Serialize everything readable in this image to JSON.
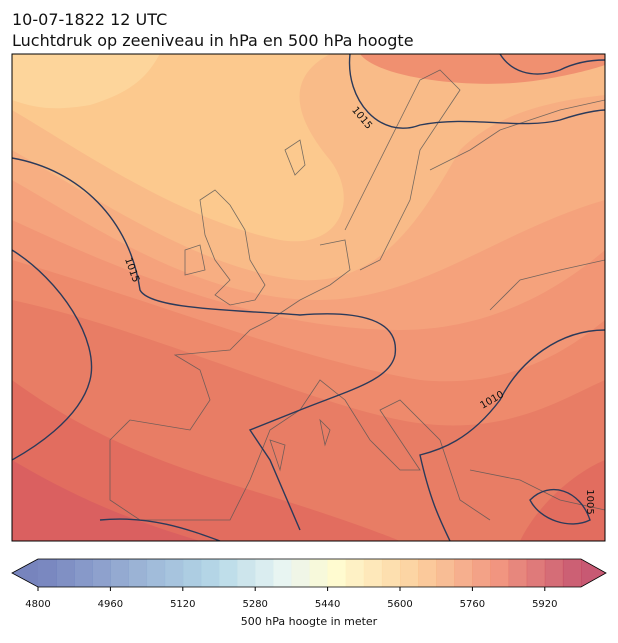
{
  "title": "10-07-1822 12 UTC",
  "subtitle": "Luchtdruk op zeeniveau in hPa en 500 hPa hoogte",
  "contour_labels": [
    "1015",
    "1015",
    "1010",
    "1005"
  ],
  "colorbar": {
    "label": "500 hPa hoogte in meter",
    "lim": [
      4800,
      6000
    ],
    "ticks": [
      4800,
      4960,
      5120,
      5280,
      5440,
      5600,
      5760,
      5920
    ]
  }
}
